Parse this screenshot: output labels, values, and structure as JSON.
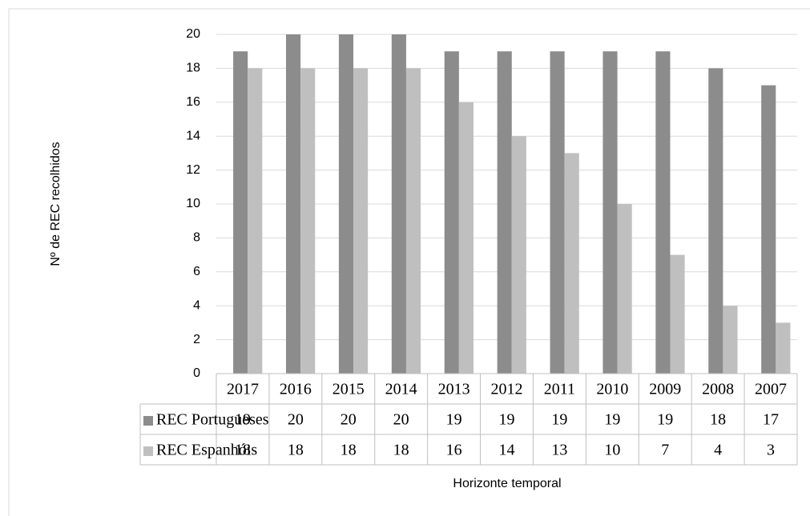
{
  "chart_data": {
    "type": "bar",
    "y_label": "Nº de REC recolhidos",
    "x_label": "Horizonte temporal",
    "categories": [
      "2017",
      "2016",
      "2015",
      "2014",
      "2013",
      "2012",
      "2011",
      "2010",
      "2009",
      "2008",
      "2007"
    ],
    "series": [
      {
        "name": "REC Portugueses",
        "color": "#8c8c8c",
        "values": [
          19,
          20,
          20,
          20,
          19,
          19,
          19,
          19,
          19,
          18,
          17
        ]
      },
      {
        "name": "REC Espanhóis",
        "color": "#bfbfbf",
        "values": [
          18,
          18,
          18,
          18,
          16,
          14,
          13,
          10,
          7,
          4,
          3
        ]
      }
    ],
    "ylim": [
      0,
      20
    ],
    "yticks": [
      0,
      2,
      4,
      6,
      8,
      10,
      12,
      14,
      16,
      18,
      20
    ],
    "grid": true
  }
}
